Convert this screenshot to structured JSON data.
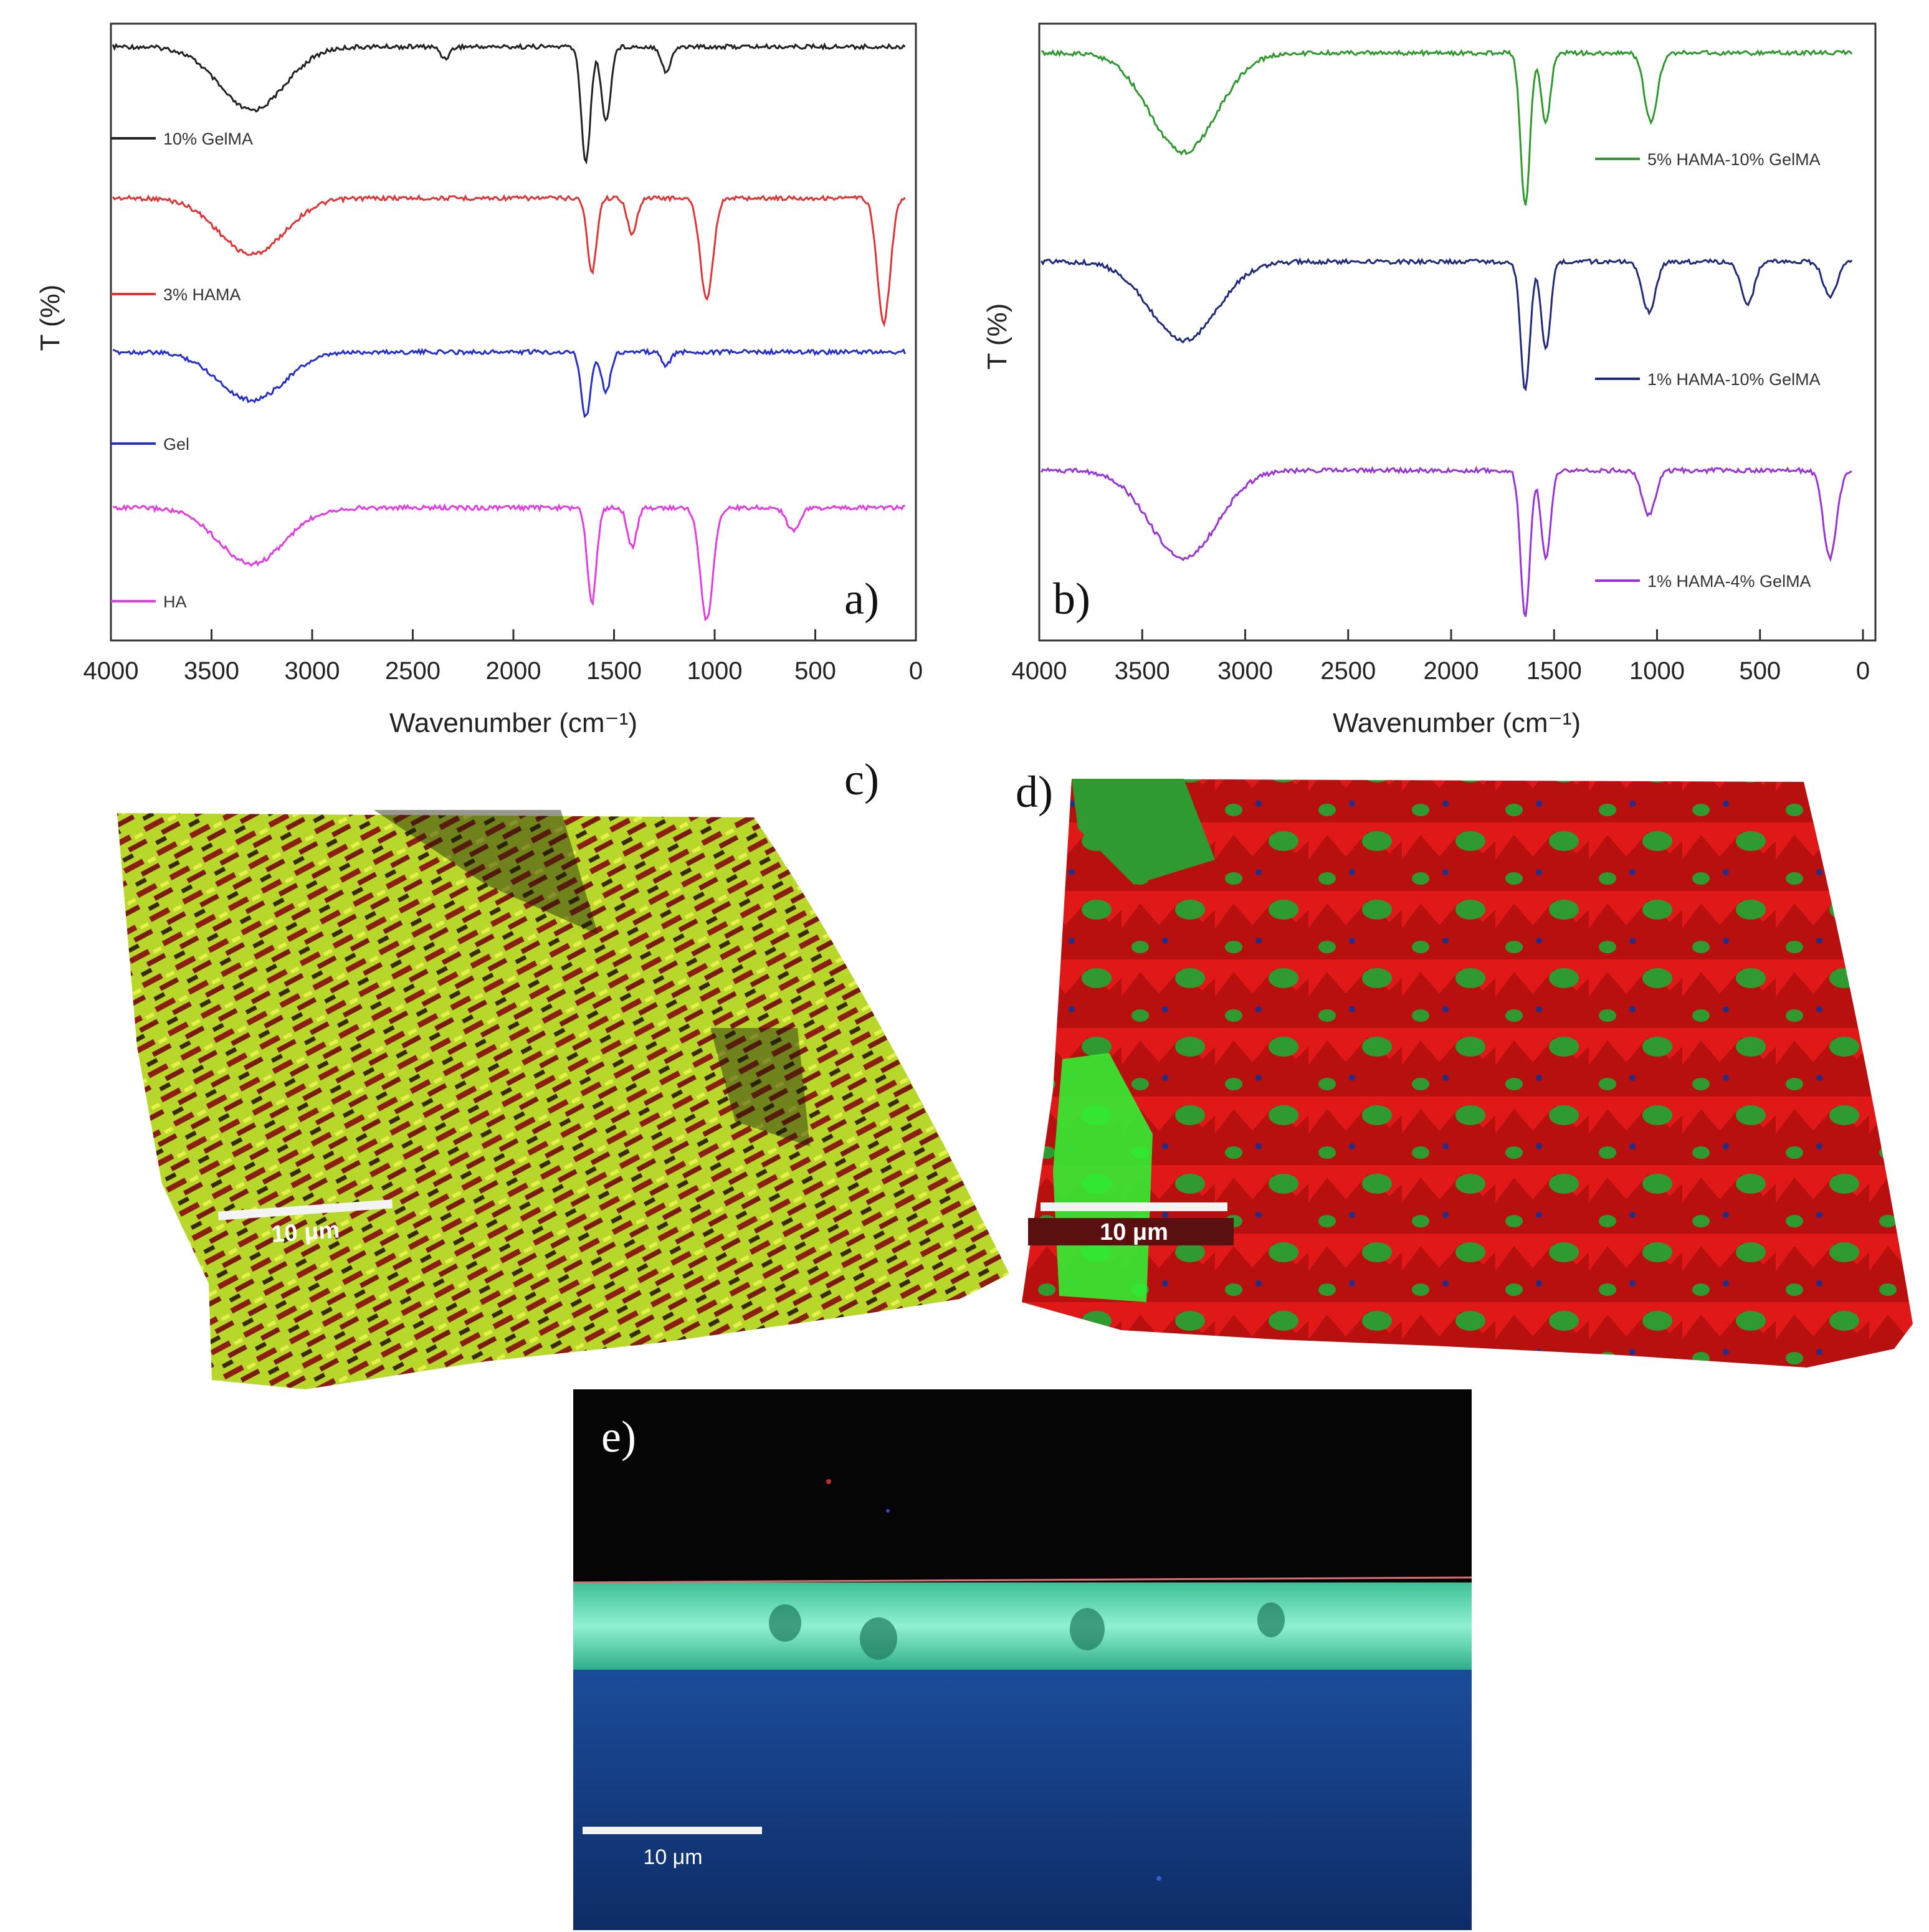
{
  "panels": {
    "a": {
      "letter": "a)"
    },
    "b": {
      "letter": "b)"
    },
    "c": {
      "letter": "c)",
      "scale_label": "10 μm"
    },
    "d": {
      "letter": "d)",
      "scale_label": "10 μm"
    },
    "e": {
      "letter": "e)",
      "scale_label": "10 μm"
    }
  },
  "chart_data": [
    {
      "type": "line",
      "panel": "a",
      "xlabel": "Wavenumber (cm⁻¹)",
      "ylabel": "T (%)",
      "xlim": [
        4000,
        0
      ],
      "xticks": [
        "4000",
        "3500",
        "3000",
        "2500",
        "2000",
        "1500",
        "1000",
        "500",
        "0"
      ],
      "legend_placement": "left, under each trace",
      "series": [
        {
          "name": "10% GelMA",
          "color": "#222222",
          "bands": [
            {
              "x": 3300,
              "depth": 0.55
            },
            {
              "x": 2340,
              "depth": 0.1
            },
            {
              "x": 1640,
              "depth": 1.0
            },
            {
              "x": 1540,
              "depth": 0.65
            },
            {
              "x": 1240,
              "depth": 0.22
            }
          ]
        },
        {
          "name": "3% HAMA",
          "color": "#e03535",
          "bands": [
            {
              "x": 3300,
              "depth": 0.45
            },
            {
              "x": 1610,
              "depth": 0.6
            },
            {
              "x": 1410,
              "depth": 0.3
            },
            {
              "x": 1040,
              "depth": 0.8
            },
            {
              "x": 160,
              "depth": 1.0
            }
          ]
        },
        {
          "name": "Gel",
          "color": "#2630c8",
          "bands": [
            {
              "x": 3300,
              "depth": 0.55
            },
            {
              "x": 1640,
              "depth": 0.75
            },
            {
              "x": 1540,
              "depth": 0.45
            },
            {
              "x": 1240,
              "depth": 0.15
            }
          ]
        },
        {
          "name": "HA",
          "color": "#e23ce2",
          "bands": [
            {
              "x": 3300,
              "depth": 0.5
            },
            {
              "x": 1610,
              "depth": 0.85
            },
            {
              "x": 1410,
              "depth": 0.35
            },
            {
              "x": 1040,
              "depth": 1.0
            },
            {
              "x": 610,
              "depth": 0.2
            }
          ]
        }
      ]
    },
    {
      "type": "line",
      "panel": "b",
      "xlabel": "Wavenumber (cm⁻¹)",
      "ylabel": "T (%)",
      "xlim": [
        4000,
        0
      ],
      "xticks": [
        "4000",
        "3500",
        "3000",
        "2500",
        "2000",
        "1500",
        "1000",
        "500",
        "0"
      ],
      "legend_placement": "right, under each trace",
      "series": [
        {
          "name": "5% HAMA-10% GelMA",
          "color": "#2e9a2e",
          "bands": [
            {
              "x": 3300,
              "depth": 0.65
            },
            {
              "x": 1640,
              "depth": 1.0
            },
            {
              "x": 1540,
              "depth": 0.45
            },
            {
              "x": 1030,
              "depth": 0.45
            }
          ]
        },
        {
          "name": "1% HAMA-10% GelMA",
          "color": "#1f2a7a",
          "bands": [
            {
              "x": 3300,
              "depth": 0.55
            },
            {
              "x": 1640,
              "depth": 0.9
            },
            {
              "x": 1540,
              "depth": 0.6
            },
            {
              "x": 1040,
              "depth": 0.35
            },
            {
              "x": 560,
              "depth": 0.3
            },
            {
              "x": 160,
              "depth": 0.25
            }
          ]
        },
        {
          "name": "1% HAMA-4% GelMA",
          "color": "#9a33d8",
          "bands": [
            {
              "x": 3300,
              "depth": 0.6
            },
            {
              "x": 1640,
              "depth": 1.0
            },
            {
              "x": 1540,
              "depth": 0.6
            },
            {
              "x": 1040,
              "depth": 0.3
            },
            {
              "x": 160,
              "depth": 0.6
            }
          ]
        }
      ]
    }
  ]
}
